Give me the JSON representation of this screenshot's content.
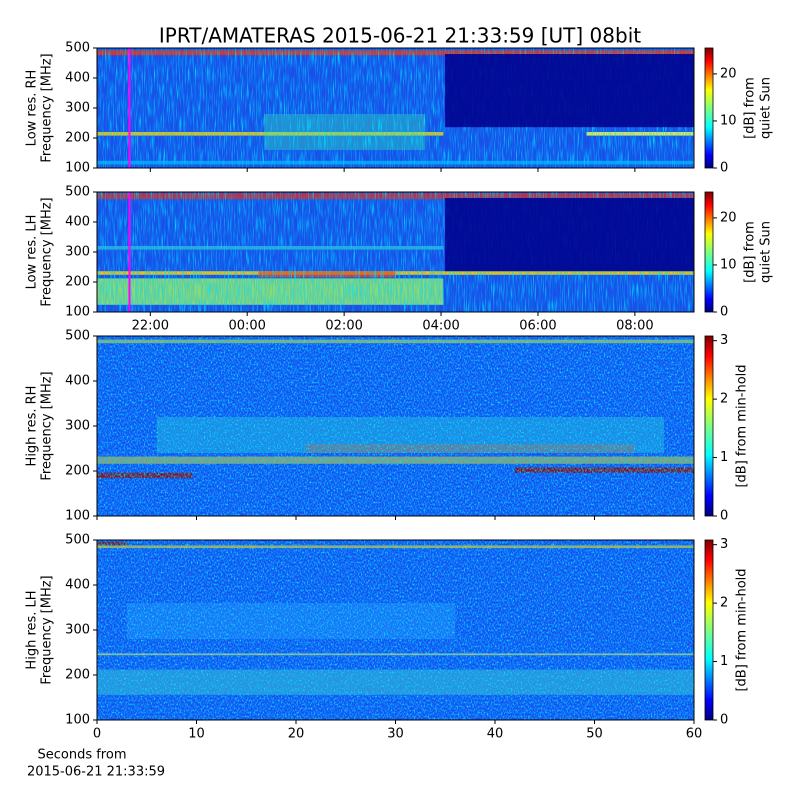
{
  "title": "IPRT/AMATERAS 2015-06-21 21:33:59 [UT]   08bit",
  "xlabel": [
    "Seconds from",
    "2015-06-21 21:33:59"
  ],
  "chart_data": [
    {
      "type": "heatmap",
      "ylabel": [
        "Low res. RH",
        "Frequency [MHz]"
      ],
      "ylim": [
        100,
        500
      ],
      "yticks": [
        100,
        200,
        300,
        400,
        500
      ],
      "xlim": [
        20.9,
        33.22
      ],
      "vline": 21.57,
      "vline_color": "#ff00ff",
      "clim": [
        0,
        25.5
      ],
      "cticks": [
        0,
        10,
        20
      ],
      "clabel": [
        "[dB] from",
        "quiet Sun"
      ],
      "colormap": "jet"
    },
    {
      "type": "heatmap",
      "ylabel": [
        "Low res. LH",
        "Frequency [MHz]"
      ],
      "ylim": [
        100,
        500
      ],
      "yticks": [
        100,
        200,
        300,
        400,
        500
      ],
      "xlim": [
        20.9,
        33.22
      ],
      "xticks": [
        {
          "value": 22,
          "label": "22:00"
        },
        {
          "value": 24,
          "label": "00:00"
        },
        {
          "value": 26,
          "label": "02:00"
        },
        {
          "value": 28,
          "label": "04:00"
        },
        {
          "value": 30,
          "label": "06:00"
        },
        {
          "value": 32,
          "label": "08:00"
        }
      ],
      "vline": 21.57,
      "vline_color": "#ff00ff",
      "clim": [
        0,
        25.5
      ],
      "cticks": [
        0,
        10,
        20
      ],
      "clabel": [
        "[dB] from",
        "quiet Sun"
      ],
      "colormap": "jet"
    },
    {
      "type": "heatmap",
      "ylabel": [
        "High res. RH",
        "Frequency [MHz]"
      ],
      "ylim": [
        100,
        500
      ],
      "yticks": [
        100,
        200,
        300,
        400,
        500
      ],
      "xlim": [
        0,
        60
      ],
      "clim": [
        0,
        3.08
      ],
      "cticks": [
        0,
        1,
        2,
        3
      ],
      "clabel": [
        "[dB] from min-hold"
      ],
      "colormap": "jet"
    },
    {
      "type": "heatmap",
      "ylabel": [
        "High res. LH",
        "Frequency [MHz]"
      ],
      "ylim": [
        100,
        500
      ],
      "yticks": [
        100,
        200,
        300,
        400,
        500
      ],
      "xlim": [
        0,
        60
      ],
      "xticks": [
        0,
        10,
        20,
        30,
        40,
        50,
        60
      ],
      "clim": [
        0,
        3.08
      ],
      "cticks": [
        0,
        1,
        2,
        3
      ],
      "clabel": [
        "[dB] from min-hold"
      ],
      "colormap": "jet"
    }
  ]
}
